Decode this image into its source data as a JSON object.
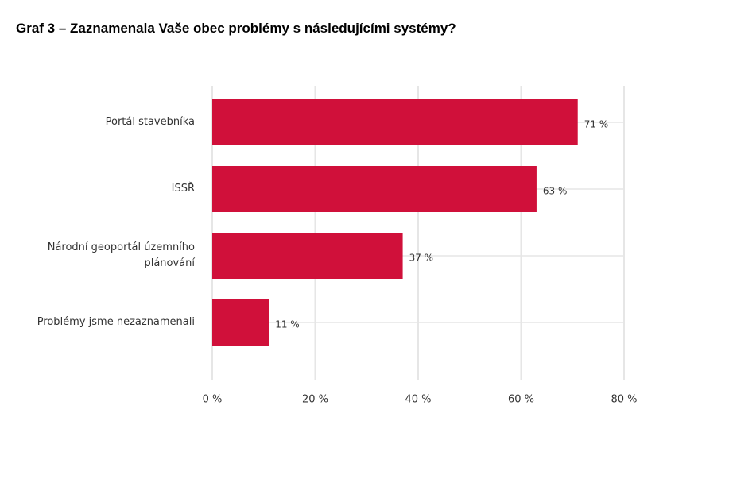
{
  "chart_data": {
    "type": "bar",
    "orientation": "horizontal",
    "title": "Graf 3 – Zaznamenala Vaše obec problémy s následujícími systémy?",
    "categories": [
      "Portál stavebníka",
      "ISSŘ",
      "Národní geoportál územního plánování",
      "Problémy jsme nezaznamenali"
    ],
    "values": [
      71,
      63,
      37,
      11
    ],
    "value_labels": [
      "71 %",
      "63 %",
      "37 %",
      "11 %"
    ],
    "color": "#d0103a",
    "xlim": [
      0,
      80
    ],
    "xticks": [
      {
        "value": 0,
        "label": "0 %"
      },
      {
        "value": 20,
        "label": "20 %"
      },
      {
        "value": 40,
        "label": "40 %"
      },
      {
        "value": 60,
        "label": "60 %"
      },
      {
        "value": 80,
        "label": "80 %"
      }
    ],
    "grid": true
  }
}
